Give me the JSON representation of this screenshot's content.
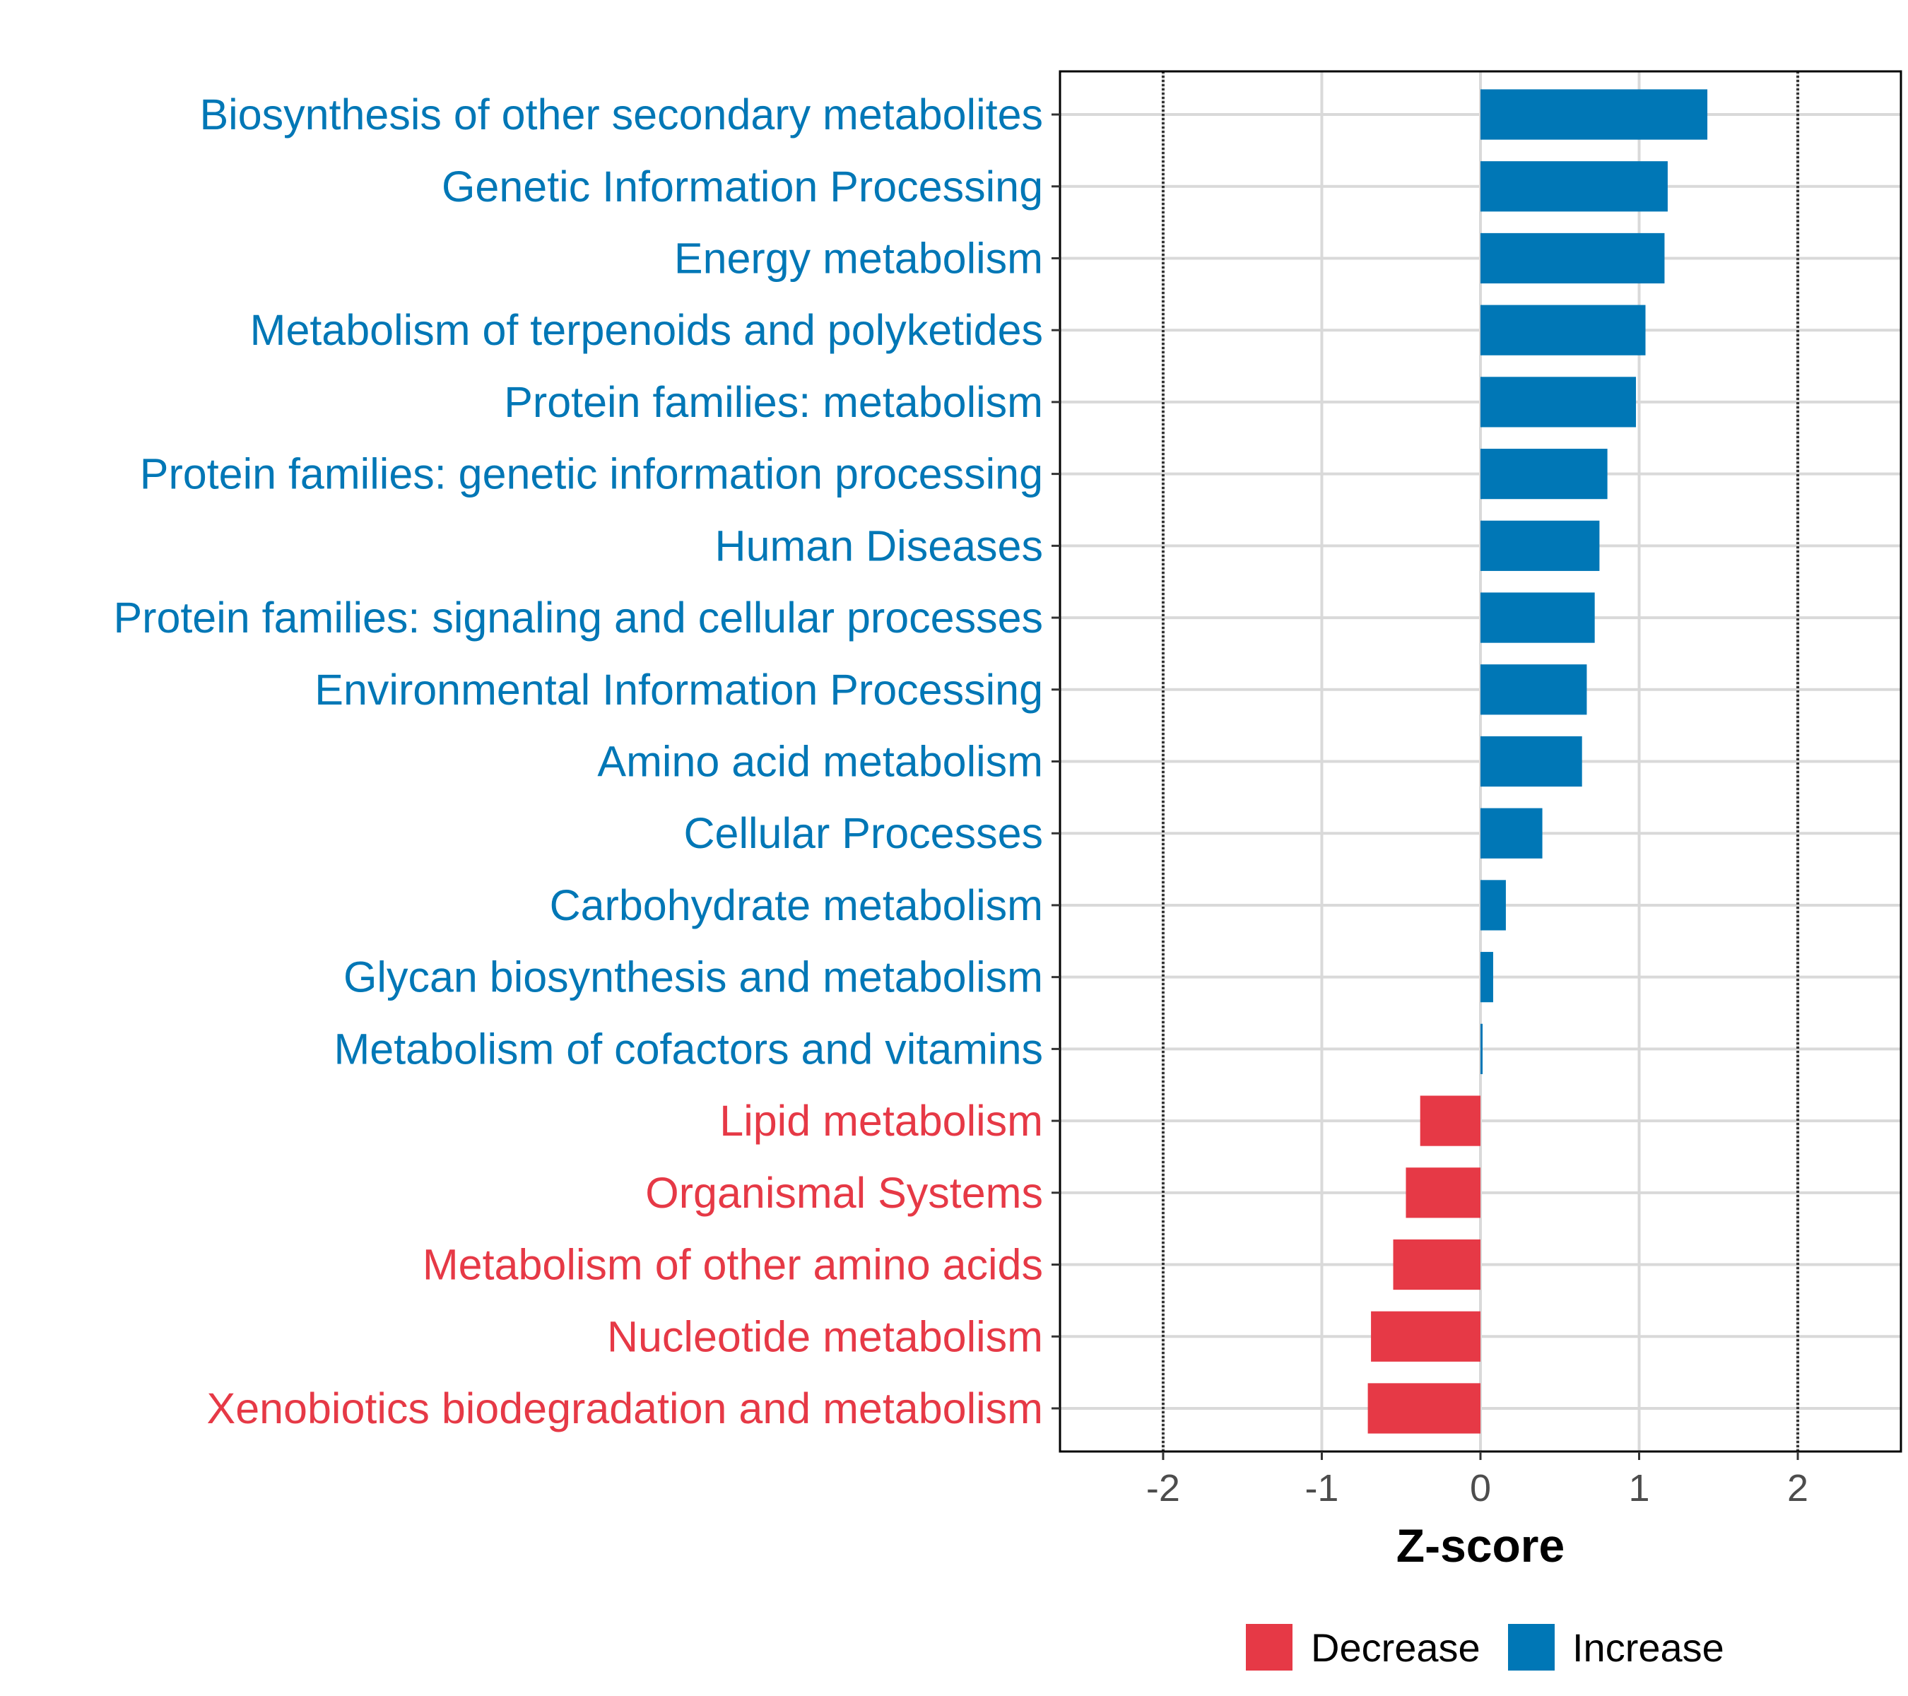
{
  "chart_data": {
    "type": "bar",
    "orientation": "horizontal",
    "title": "",
    "xlabel": "Z-score",
    "ylabel": "",
    "xlim": [
      -2.65,
      2.65
    ],
    "xticks": [
      -2,
      -1,
      0,
      1,
      2
    ],
    "xtick_labels": [
      "-2",
      "-1",
      "0",
      "1",
      "2"
    ],
    "reference_lines": [
      -2,
      2
    ],
    "grid": true,
    "categories": [
      "Biosynthesis of other secondary metabolites",
      "Genetic Information Processing",
      "Energy metabolism",
      "Metabolism of terpenoids and polyketides",
      "Protein families: metabolism",
      "Protein families: genetic information processing",
      "Human Diseases",
      "Protein families: signaling and cellular processes",
      "Environmental Information Processing",
      "Amino acid metabolism",
      "Cellular Processes",
      "Carbohydrate metabolism",
      "Glycan biosynthesis and metabolism",
      "Metabolism of cofactors and vitamins",
      "Lipid metabolism",
      "Organismal Systems",
      "Metabolism of other amino acids",
      "Nucleotide metabolism",
      "Xenobiotics biodegradation and metabolism"
    ],
    "values": [
      1.43,
      1.18,
      1.16,
      1.04,
      0.98,
      0.8,
      0.75,
      0.72,
      0.67,
      0.64,
      0.39,
      0.16,
      0.08,
      0.01,
      -0.38,
      -0.47,
      -0.55,
      -0.69,
      -0.71
    ],
    "groups": [
      "Increase",
      "Increase",
      "Increase",
      "Increase",
      "Increase",
      "Increase",
      "Increase",
      "Increase",
      "Increase",
      "Increase",
      "Increase",
      "Increase",
      "Increase",
      "Increase",
      "Decrease",
      "Decrease",
      "Decrease",
      "Decrease",
      "Decrease"
    ],
    "legend": {
      "placement": "bottom",
      "entries": [
        {
          "label": "Decrease",
          "color": "#E63946"
        },
        {
          "label": "Increase",
          "color": "#0077B6"
        }
      ]
    }
  }
}
